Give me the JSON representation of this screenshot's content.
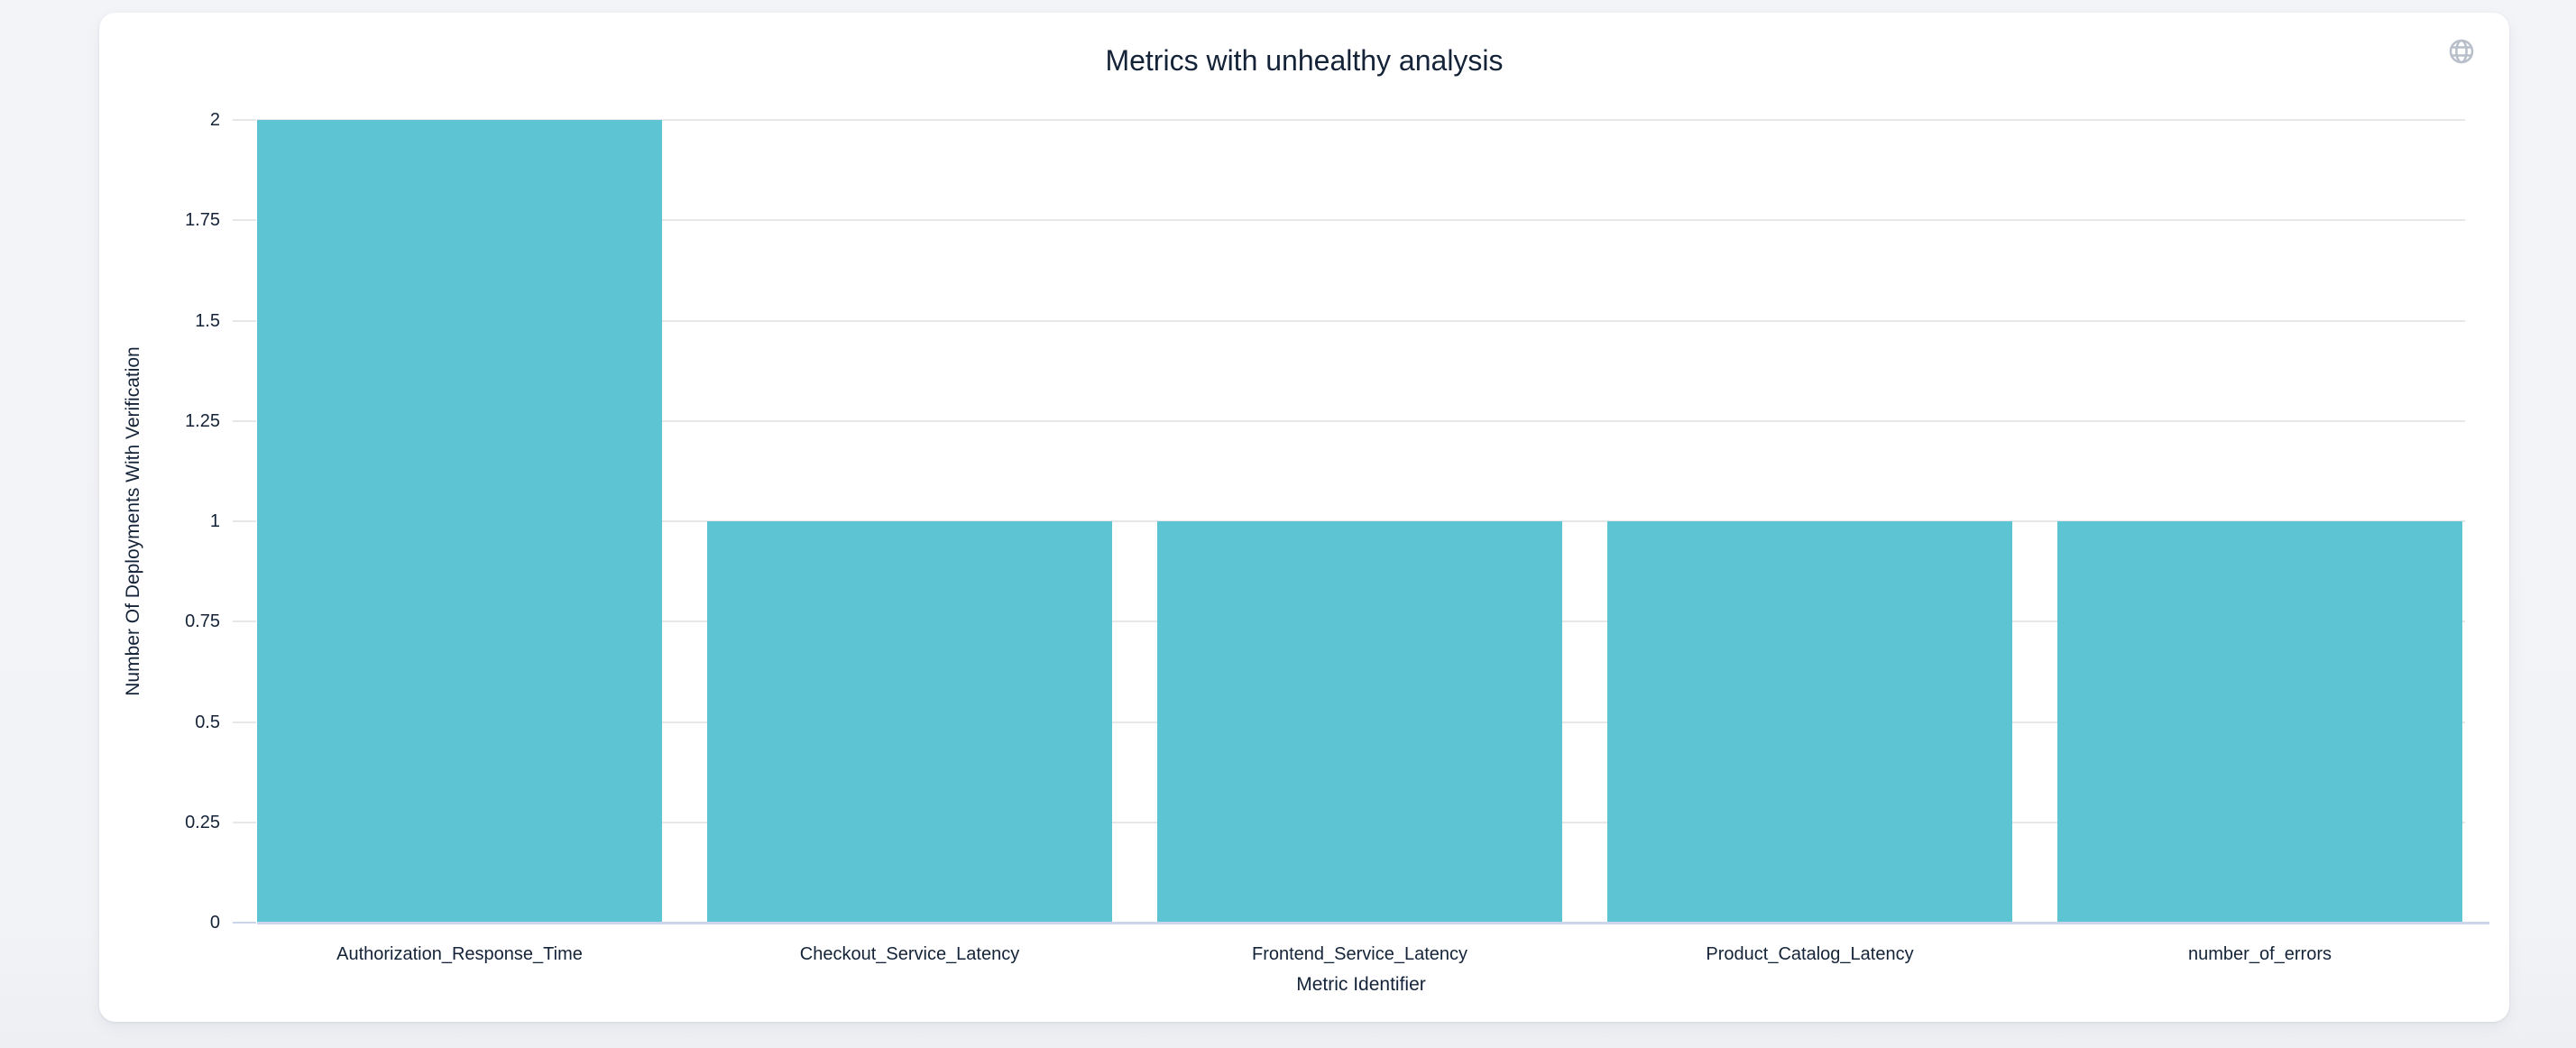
{
  "header": {
    "title": "Metrics with unhealthy analysis"
  },
  "toolbar": {
    "globe_icon": "globe"
  },
  "chart_data": {
    "type": "bar",
    "title": "Metrics with unhealthy analysis",
    "categories": [
      "Authorization_Response_Time",
      "Checkout_Service_Latency",
      "Frontend_Service_Latency",
      "Product_Catalog_Latency",
      "number_of_errors"
    ],
    "values": [
      2,
      1,
      1,
      1,
      1
    ],
    "xlabel": "Metric Identifier",
    "ylabel": "Number Of Deployments With Verification",
    "ylim": [
      0,
      2
    ],
    "yticks": [
      0,
      0.25,
      0.5,
      0.75,
      1,
      1.25,
      1.5,
      1.75,
      2
    ],
    "ytick_labels": [
      "0",
      "0.25",
      "0.5",
      "0.75",
      "1",
      "1.25",
      "1.5",
      "1.75",
      "2"
    ],
    "grid": "horizontal",
    "legend": "none",
    "colors": {
      "bar": "#5CC4D3",
      "grid": "#e7e7e7",
      "axis_line": "#ccd6eb",
      "text": "#142338",
      "icon": "#b8bfca",
      "card_bg": "#ffffff",
      "page_bg": "#f2f3f7"
    }
  }
}
